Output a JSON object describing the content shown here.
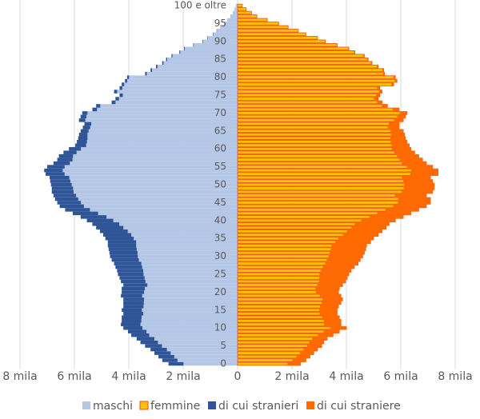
{
  "chart_data": {
    "type": "pyramid",
    "categories": [
      "0",
      null,
      null,
      null,
      null,
      "5",
      null,
      null,
      null,
      null,
      "10",
      null,
      null,
      null,
      null,
      "15",
      null,
      null,
      null,
      null,
      "20",
      null,
      null,
      null,
      null,
      "25",
      null,
      null,
      null,
      null,
      "30",
      null,
      null,
      null,
      null,
      "35",
      null,
      null,
      null,
      null,
      "40",
      null,
      null,
      null,
      null,
      "45",
      null,
      null,
      null,
      null,
      "50",
      null,
      null,
      null,
      null,
      "55",
      null,
      null,
      null,
      null,
      "60",
      null,
      null,
      null,
      null,
      "65",
      null,
      null,
      null,
      null,
      "70",
      null,
      null,
      null,
      null,
      "75",
      null,
      null,
      null,
      null,
      "80",
      null,
      null,
      null,
      null,
      "85",
      null,
      null,
      null,
      null,
      "90",
      null,
      null,
      null,
      null,
      "95",
      null,
      null,
      null,
      null,
      "100 e oltre"
    ],
    "series": [
      {
        "name": "maschi",
        "color": "#b4c7e7",
        "values": [
          -2540,
          -2770,
          -2910,
          -3060,
          -3200,
          -3400,
          -3570,
          -3710,
          -3910,
          -4030,
          -4200,
          -4290,
          -4260,
          -4260,
          -4200,
          -4260,
          -4200,
          -4200,
          -4200,
          -4290,
          -4260,
          -4260,
          -4200,
          -4290,
          -4340,
          -4400,
          -4430,
          -4490,
          -4540,
          -4630,
          -4690,
          -4710,
          -4740,
          -4770,
          -4770,
          -4860,
          -4940,
          -5060,
          -5200,
          -5340,
          -5540,
          -5770,
          -6060,
          -6340,
          -6540,
          -6630,
          -6710,
          -6770,
          -6830,
          -6830,
          -6860,
          -6890,
          -6910,
          -7060,
          -7110,
          -7000,
          -6770,
          -6630,
          -6570,
          -6400,
          -6200,
          -5970,
          -5910,
          -5860,
          -5830,
          -5770,
          -5690,
          -5630,
          -5830,
          -5770,
          -5710,
          -5340,
          -5200,
          -4630,
          -4490,
          -4340,
          -4540,
          -4340,
          -4260,
          -4140,
          -4060,
          -3400,
          -3200,
          -3000,
          -2770,
          -2630,
          -2430,
          -2140,
          -1970,
          -1630,
          -1290,
          -1110,
          -910,
          -770,
          -630,
          -490,
          -370,
          -260,
          -170,
          -110,
          -60
        ]
      },
      {
        "name": "femmine",
        "color": "#ffc000",
        "edgecolor": "#e8501e",
        "values": [
          2310,
          2510,
          2660,
          2800,
          2940,
          3090,
          3170,
          3290,
          3510,
          3740,
          4000,
          3800,
          3800,
          3740,
          3660,
          3660,
          3710,
          3800,
          3860,
          3800,
          3710,
          3740,
          3860,
          3970,
          4030,
          4090,
          4170,
          4290,
          4430,
          4510,
          4600,
          4660,
          4710,
          4740,
          4890,
          5000,
          5170,
          5310,
          5460,
          5570,
          5800,
          6090,
          6370,
          6660,
          6940,
          7090,
          7090,
          6940,
          7170,
          7230,
          7230,
          7170,
          7090,
          7370,
          7370,
          7170,
          6940,
          6800,
          6660,
          6510,
          6370,
          6310,
          6230,
          6170,
          6140,
          6090,
          5940,
          5940,
          6090,
          6170,
          6230,
          5940,
          5510,
          5310,
          5170,
          5230,
          5310,
          5230,
          5740,
          5860,
          5800,
          5400,
          5370,
          5170,
          4940,
          4800,
          4660,
          4310,
          4090,
          3660,
          3230,
          2940,
          2510,
          2230,
          1860,
          1510,
          1090,
          710,
          510,
          310,
          170
        ]
      },
      {
        "name": "di cui stranieri",
        "color": "#2f5597",
        "values": [
          -550,
          -560,
          -580,
          -600,
          -600,
          -620,
          -640,
          -650,
          -660,
          -680,
          -700,
          -720,
          -720,
          -730,
          -730,
          -740,
          -740,
          -750,
          -760,
          -780,
          -820,
          -850,
          -880,
          -900,
          -920,
          -940,
          -960,
          -980,
          -1000,
          -1000,
          -1020,
          -1030,
          -1030,
          -1040,
          -1040,
          -1040,
          -1030,
          -1020,
          -1000,
          -990,
          -970,
          -950,
          -930,
          -910,
          -890,
          -870,
          -850,
          -830,
          -800,
          -780,
          -760,
          -740,
          -720,
          -700,
          -680,
          -640,
          -600,
          -560,
          -520,
          -480,
          -440,
          -400,
          -370,
          -340,
          -310,
          -290,
          -270,
          -250,
          -230,
          -210,
          -190,
          -170,
          -150,
          -140,
          -130,
          -120,
          -110,
          -100,
          -90,
          -80,
          -70,
          -60,
          -55,
          -50,
          -45,
          -40,
          -35,
          -30,
          -25,
          -20,
          -18,
          -15,
          -12,
          -10,
          -8,
          -6,
          -5,
          -4,
          -3,
          -2,
          -1
        ]
      },
      {
        "name": "di cui straniere",
        "color": "#ff6a00",
        "values": [
          480,
          490,
          500,
          510,
          520,
          530,
          540,
          550,
          560,
          580,
          600,
          620,
          630,
          640,
          650,
          660,
          680,
          700,
          740,
          780,
          830,
          880,
          930,
          980,
          1030,
          1080,
          1120,
          1160,
          1200,
          1230,
          1250,
          1270,
          1280,
          1290,
          1300,
          1300,
          1300,
          1290,
          1280,
          1270,
          1260,
          1250,
          1240,
          1230,
          1220,
          1200,
          1180,
          1160,
          1140,
          1120,
          1100,
          1080,
          1050,
          1020,
          990,
          950,
          900,
          850,
          800,
          750,
          700,
          650,
          600,
          550,
          500,
          460,
          420,
          380,
          340,
          300,
          270,
          240,
          210,
          180,
          160,
          140,
          120,
          100,
          90,
          80,
          70,
          60,
          55,
          50,
          45,
          40,
          35,
          30,
          25,
          20,
          18,
          15,
          12,
          10,
          8,
          6,
          5,
          4,
          3,
          2,
          1
        ]
      }
    ],
    "xlim": [
      -8000,
      8000
    ],
    "xticks": [
      {
        "value": -8000,
        "label": "8 mila"
      },
      {
        "value": -6000,
        "label": "6 mila"
      },
      {
        "value": -4000,
        "label": "4 mila"
      },
      {
        "value": -2000,
        "label": "2 mila"
      },
      0,
      {
        "value": 2000,
        "label": "2 mila"
      },
      {
        "value": 4000,
        "label": "4 mila"
      },
      {
        "value": 6000,
        "label": "6 mila"
      },
      {
        "value": 8000,
        "label": "8 mila"
      }
    ],
    "grid": true
  }
}
